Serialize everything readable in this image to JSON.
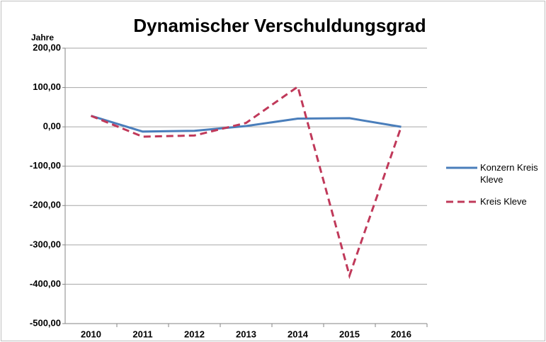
{
  "chart_data": {
    "type": "line",
    "title": "Dynamischer Verschuldungsgrad",
    "y_label": "Jahre",
    "categories": [
      "2010",
      "2011",
      "2012",
      "2013",
      "2014",
      "2015",
      "2016"
    ],
    "series": [
      {
        "name": "Konzern Kreis Kleve",
        "color": "#4a7ebb",
        "dash": "solid",
        "values": [
          28,
          -12,
          -10,
          2,
          21,
          22,
          0
        ]
      },
      {
        "name": "Kreis Kleve",
        "color": "#c0395a",
        "dash": "dashed",
        "values": [
          28,
          -25,
          -22,
          10,
          102,
          -378,
          0
        ]
      }
    ],
    "ylim": [
      -500,
      200
    ],
    "yticks": [
      {
        "value": -500,
        "label": "-500,00"
      },
      {
        "value": -400,
        "label": "-400,00"
      },
      {
        "value": -300,
        "label": "-300,00"
      },
      {
        "value": -200,
        "label": "-200,00"
      },
      {
        "value": -100,
        "label": "-100,00"
      },
      {
        "value": 0,
        "label": "0,00"
      },
      {
        "value": 100,
        "label": "100,00"
      },
      {
        "value": 200,
        "label": "200,00"
      }
    ],
    "grid": true,
    "legend": "right"
  }
}
